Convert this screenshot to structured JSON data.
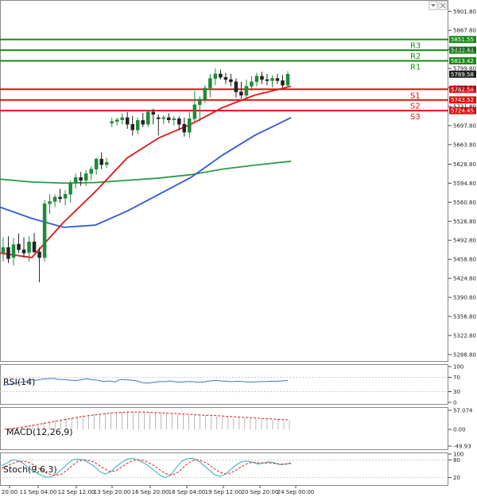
{
  "chart_data": {
    "type": "candlestick",
    "main": {
      "y_ticks": [
        "5901.80",
        "5867.80",
        "5833.80",
        "5799.80",
        "5765.80",
        "5731.80",
        "5697.80",
        "5663.80",
        "5628.80",
        "5594.80",
        "5560.80",
        "5526.80",
        "5492.80",
        "5458.80",
        "5424.80",
        "5390.80",
        "5356.80",
        "5322.80",
        "5288.80"
      ],
      "ylim": [
        5280,
        5915
      ],
      "last_price": "5789.58",
      "levels": [
        {
          "name": "R3",
          "value": "5851.55",
          "color": "#1a8a1a"
        },
        {
          "name": "R2",
          "value": "5832.48",
          "color": "#1a8a1a"
        },
        {
          "name": "R1",
          "value": "5813.42",
          "color": "#1a8a1a"
        },
        {
          "name": "S1",
          "value": "5762.58",
          "color": "#e01010"
        },
        {
          "name": "S2",
          "value": "5743.52",
          "color": "#e01010"
        },
        {
          "name": "S3",
          "value": "5724.45",
          "color": "#e01010"
        }
      ],
      "candles": [
        [
          5470,
          5498,
          5455,
          5480
        ],
        [
          5480,
          5500,
          5452,
          5460
        ],
        [
          5462,
          5497,
          5448,
          5485
        ],
        [
          5486,
          5505,
          5470,
          5476
        ],
        [
          5476,
          5498,
          5462,
          5470
        ],
        [
          5471,
          5500,
          5455,
          5490
        ],
        [
          5490,
          5506,
          5470,
          5472
        ],
        [
          5472,
          5480,
          5418,
          5462
        ],
        [
          5462,
          5565,
          5455,
          5558
        ],
        [
          5558,
          5575,
          5540,
          5562
        ],
        [
          5562,
          5575,
          5552,
          5570
        ],
        [
          5570,
          5585,
          5560,
          5567
        ],
        [
          5568,
          5582,
          5555,
          5575
        ],
        [
          5575,
          5600,
          5560,
          5595
        ],
        [
          5595,
          5612,
          5585,
          5605
        ],
        [
          5605,
          5615,
          5590,
          5600
        ],
        [
          5600,
          5618,
          5590,
          5612
        ],
        [
          5612,
          5625,
          5600,
          5620
        ],
        [
          5620,
          5640,
          5610,
          5638
        ],
        [
          5638,
          5650,
          5620,
          5628
        ],
        [
          5628,
          5640,
          5622,
          5632
        ],
        [
          5702,
          5712,
          5695,
          5705
        ],
        [
          5705,
          5712,
          5698,
          5708
        ],
        [
          5708,
          5720,
          5700,
          5712
        ],
        [
          5712,
          5722,
          5692,
          5700
        ],
        [
          5700,
          5715,
          5680,
          5690
        ],
        [
          5690,
          5712,
          5682,
          5707
        ],
        [
          5707,
          5720,
          5695,
          5700
        ],
        [
          5700,
          5726,
          5695,
          5722
        ],
        [
          5722,
          5728,
          5700,
          5718
        ],
        [
          5712,
          5718,
          5680,
          5710
        ],
        [
          5710,
          5716,
          5700,
          5712
        ],
        [
          5712,
          5720,
          5702,
          5708
        ],
        [
          5708,
          5715,
          5698,
          5710
        ],
        [
          5710,
          5714,
          5690,
          5700
        ],
        [
          5700,
          5712,
          5678,
          5686
        ],
        [
          5686,
          5722,
          5676,
          5710
        ],
        [
          5710,
          5760,
          5705,
          5735
        ],
        [
          5735,
          5750,
          5705,
          5745
        ],
        [
          5745,
          5770,
          5738,
          5765
        ],
        [
          5765,
          5790,
          5748,
          5782
        ],
        [
          5782,
          5800,
          5770,
          5790
        ],
        [
          5790,
          5798,
          5780,
          5784
        ],
        [
          5784,
          5792,
          5772,
          5780
        ],
        [
          5780,
          5790,
          5768,
          5776
        ],
        [
          5776,
          5782,
          5748,
          5758
        ],
        [
          5758,
          5776,
          5746,
          5752
        ],
        [
          5752,
          5780,
          5748,
          5768
        ],
        [
          5768,
          5786,
          5760,
          5776
        ],
        [
          5776,
          5792,
          5768,
          5786
        ],
        [
          5786,
          5794,
          5772,
          5780
        ],
        [
          5780,
          5790,
          5770,
          5778
        ],
        [
          5778,
          5788,
          5766,
          5782
        ],
        [
          5782,
          5790,
          5772,
          5778
        ],
        [
          5778,
          5788,
          5766,
          5770
        ],
        [
          5770,
          5795,
          5766,
          5789.58
        ]
      ],
      "ma_red": [
        [
          0,
          5470
        ],
        [
          40,
          5462
        ],
        [
          80,
          5525
        ],
        [
          120,
          5580
        ],
        [
          160,
          5640
        ],
        [
          200,
          5676
        ],
        [
          240,
          5700
        ],
        [
          280,
          5730
        ],
        [
          320,
          5752
        ],
        [
          366,
          5768
        ]
      ],
      "ma_blue": [
        [
          0,
          5552
        ],
        [
          40,
          5532
        ],
        [
          80,
          5516
        ],
        [
          120,
          5520
        ],
        [
          160,
          5545
        ],
        [
          200,
          5575
        ],
        [
          240,
          5605
        ],
        [
          280,
          5645
        ],
        [
          320,
          5680
        ],
        [
          366,
          5712
        ]
      ],
      "ma_green": [
        [
          0,
          5602
        ],
        [
          40,
          5597
        ],
        [
          80,
          5595
        ],
        [
          120,
          5596
        ],
        [
          160,
          5600
        ],
        [
          200,
          5604
        ],
        [
          240,
          5610
        ],
        [
          280,
          5620
        ],
        [
          320,
          5627
        ],
        [
          366,
          5634
        ]
      ]
    },
    "x_ticks": [
      "20:00",
      "11 Sep 04:00",
      "12 Sep 12:00",
      "13 Sep 20:00",
      "16 Sep 20:00",
      "18 Sep 04:00",
      "19 Sep 12:00",
      "20 Sep 20:00",
      "24 Sep 00:00"
    ],
    "rsi": {
      "label": "RSI(14)",
      "y_ticks": [
        "100",
        "70",
        "30",
        "0"
      ],
      "values": [
        48,
        50,
        53,
        56,
        58,
        63,
        62,
        65,
        66,
        67,
        64,
        64,
        62,
        61,
        63,
        66,
        63,
        62,
        58,
        60,
        57,
        64,
        63,
        62,
        60,
        55,
        54,
        56,
        58,
        58,
        60,
        57,
        57,
        58,
        58,
        56,
        57,
        60,
        61,
        60,
        59,
        58,
        59,
        58,
        57,
        57,
        58,
        58,
        59,
        59,
        60,
        61
      ]
    },
    "macd": {
      "label": "MACD(12,26,9)",
      "y_ticks": [
        "57.074",
        "0.00",
        "-49.93"
      ],
      "histogram": [
        2,
        4,
        6,
        9,
        12,
        15,
        18,
        21,
        24,
        27,
        30,
        33,
        36,
        39,
        42,
        44,
        46,
        48,
        50,
        51,
        52,
        53,
        53,
        53,
        53,
        52,
        51,
        50,
        49,
        48,
        47,
        46,
        45,
        44,
        43,
        42,
        41,
        40,
        39,
        38,
        37,
        36,
        35,
        34,
        33,
        32,
        31,
        30,
        29,
        29,
        28,
        28
      ],
      "signal": [
        1,
        2,
        4,
        6,
        9,
        12,
        15,
        18,
        21,
        24,
        27,
        30,
        33,
        36,
        39,
        41,
        43,
        45,
        47,
        49,
        50,
        51,
        52,
        52,
        52,
        52,
        51,
        50,
        50,
        49,
        48,
        47,
        46,
        45,
        44,
        43,
        42,
        42,
        41,
        40,
        39,
        38,
        37,
        36,
        35,
        34,
        33,
        32,
        31,
        30,
        29,
        28
      ]
    },
    "stoch": {
      "label": "Stoch(9,6,3)",
      "y_ticks": [
        "100",
        "80",
        "20"
      ],
      "k": [
        60,
        70,
        80,
        78,
        68,
        52,
        40,
        30,
        22,
        22,
        32,
        48,
        66,
        80,
        83,
        80,
        70,
        58,
        40,
        32,
        40,
        58,
        72,
        82,
        86,
        80,
        70,
        58,
        44,
        28,
        20,
        30,
        54,
        76,
        84,
        86,
        78,
        62,
        46,
        30,
        24,
        32,
        48,
        64,
        74,
        76,
        72,
        66,
        70,
        74,
        70,
        64,
        66,
        70
      ],
      "d": [
        52,
        60,
        68,
        74,
        76,
        72,
        62,
        50,
        38,
        30,
        28,
        32,
        46,
        62,
        76,
        80,
        78,
        72,
        60,
        48,
        40,
        44,
        56,
        68,
        78,
        80,
        78,
        70,
        60,
        46,
        34,
        28,
        34,
        50,
        66,
        78,
        80,
        74,
        64,
        50,
        38,
        32,
        36,
        46,
        58,
        68,
        72,
        70,
        70,
        70,
        68,
        66,
        66,
        68
      ]
    }
  },
  "ui": {
    "collapse_icon": "triangle-down-icon",
    "close_icon": "close-icon"
  }
}
